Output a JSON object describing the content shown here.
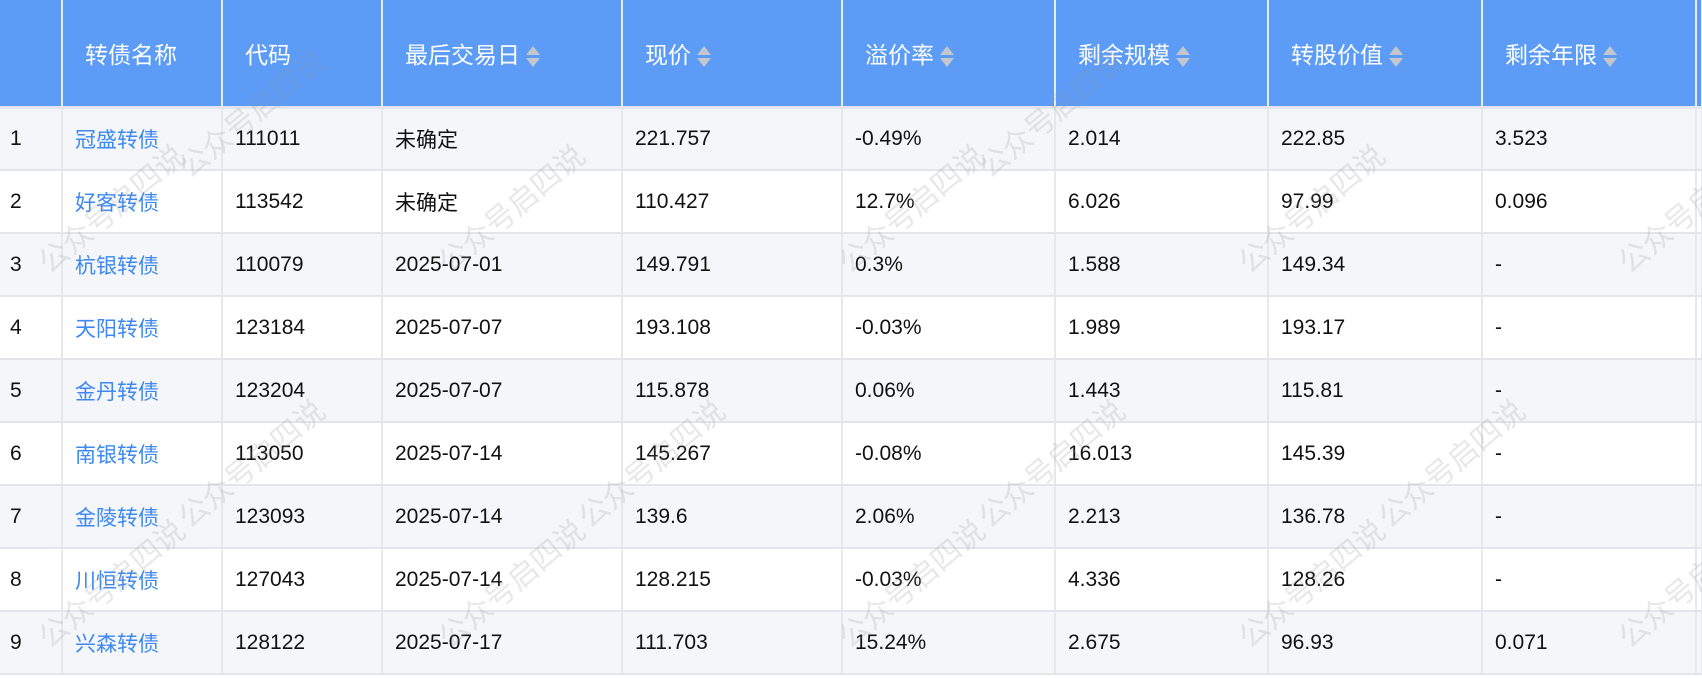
{
  "watermark": "公众号启四说",
  "colors": {
    "header_bg": "#5c9cf7",
    "link": "#3d88f2",
    "row_alt": "#f5f6fa"
  },
  "table": {
    "headers": [
      {
        "label": "",
        "sortable": false
      },
      {
        "label": "转债名称",
        "sortable": false
      },
      {
        "label": "代码",
        "sortable": false
      },
      {
        "label": "最后交易日",
        "sortable": true
      },
      {
        "label": "现价",
        "sortable": true
      },
      {
        "label": "溢价率",
        "sortable": true
      },
      {
        "label": "剩余规模",
        "sortable": true
      },
      {
        "label": "转股价值",
        "sortable": true
      },
      {
        "label": "剩余年限",
        "sortable": true
      },
      {
        "label": "",
        "sortable": false
      }
    ],
    "rows": [
      [
        "1",
        "冠盛转债",
        "111011",
        "未确定",
        "221.757",
        "-0.49%",
        "2.014",
        "222.85",
        "3.523"
      ],
      [
        "2",
        "好客转债",
        "113542",
        "未确定",
        "110.427",
        "12.7%",
        "6.026",
        "97.99",
        "0.096"
      ],
      [
        "3",
        "杭银转债",
        "110079",
        "2025-07-01",
        "149.791",
        "0.3%",
        "1.588",
        "149.34",
        "-"
      ],
      [
        "4",
        "天阳转债",
        "123184",
        "2025-07-07",
        "193.108",
        "-0.03%",
        "1.989",
        "193.17",
        "-"
      ],
      [
        "5",
        "金丹转债",
        "123204",
        "2025-07-07",
        "115.878",
        "0.06%",
        "1.443",
        "115.81",
        "-"
      ],
      [
        "6",
        "南银转债",
        "113050",
        "2025-07-14",
        "145.267",
        "-0.08%",
        "16.013",
        "145.39",
        "-"
      ],
      [
        "7",
        "金陵转债",
        "123093",
        "2025-07-14",
        "139.6",
        "2.06%",
        "2.213",
        "136.78",
        "-"
      ],
      [
        "8",
        "川恒转债",
        "127043",
        "2025-07-14",
        "128.215",
        "-0.03%",
        "4.336",
        "128.26",
        "-"
      ],
      [
        "9",
        "兴森转债",
        "128122",
        "2025-07-17",
        "111.703",
        "15.24%",
        "2.675",
        "96.93",
        "0.071"
      ]
    ]
  }
}
